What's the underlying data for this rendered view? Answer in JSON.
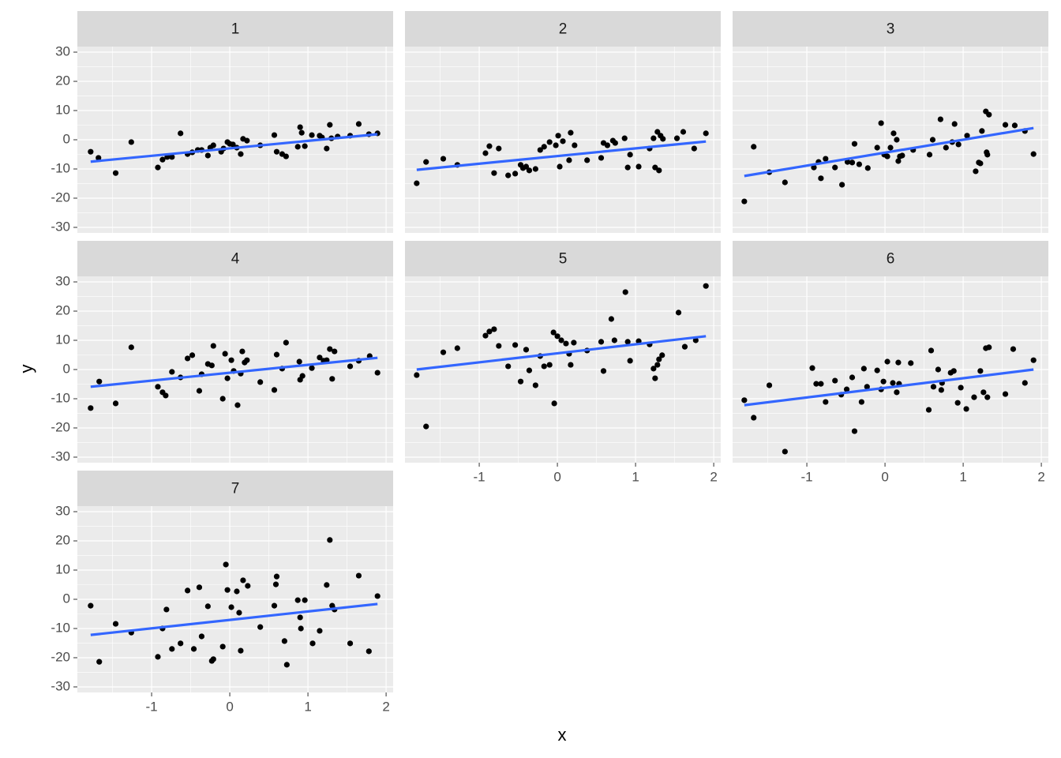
{
  "xlabel": "x",
  "ylabel": "y",
  "chart_data": [
    {
      "type": "scatter",
      "title": "1",
      "color": "#000000",
      "xlim": [
        -1.95,
        2.09
      ],
      "ylim": [
        -31.9,
        31.9
      ],
      "xticks": [
        -1,
        0,
        1,
        2
      ],
      "yticks": [
        -30,
        -20,
        -10,
        0,
        10,
        20,
        30
      ],
      "x": [
        -1.78,
        -1.68,
        -1.46,
        -1.26,
        -0.92,
        -0.86,
        -0.8,
        -0.74,
        -0.63,
        -0.54,
        -0.48,
        -0.41,
        -0.36,
        -0.28,
        -0.25,
        -0.21,
        -0.11,
        -0.08,
        -0.03,
        0,
        0.04,
        0.09,
        0.14,
        0.17,
        0.22,
        0.39,
        0.57,
        0.6,
        0.67,
        0.72,
        0.87,
        0.9,
        0.92,
        0.96,
        1.05,
        1.15,
        1.18,
        1.24,
        1.28,
        1.3,
        1.38,
        1.54,
        1.65,
        1.78,
        1.89
      ],
      "y": [
        -4.1,
        -6.2,
        -11.4,
        -0.8,
        -9.5,
        -6.8,
        -5.9,
        -5.9,
        2.2,
        -4.9,
        -4.3,
        -3.5,
        -3.5,
        -5.4,
        -2.7,
        -1.9,
        -4.1,
        -3,
        -0.8,
        -1.4,
        -1.6,
        -2.7,
        -4.9,
        0.3,
        -0.3,
        -1.9,
        1.6,
        -4.1,
        -4.9,
        -5.7,
        -2.4,
        4.3,
        2.4,
        -2.2,
        1.6,
        1.4,
        0.8,
        -3,
        5.1,
        0.5,
        1.1,
        1.4,
        5.4,
        1.9,
        2.2
      ],
      "fit": {
        "color": "#3366ff",
        "x": [
          -1.78,
          1.89
        ],
        "y": [
          -7.5,
          1.9
        ]
      }
    },
    {
      "type": "scatter",
      "title": "2",
      "color": "#000000",
      "xlim": [
        -1.95,
        2.09
      ],
      "ylim": [
        -31.9,
        31.9
      ],
      "xticks": [
        -1,
        0,
        1,
        2
      ],
      "yticks": [
        -30,
        -20,
        -10,
        0,
        10,
        20,
        30
      ],
      "x": [
        -1.8,
        -1.68,
        -1.46,
        -1.28,
        -0.92,
        -0.87,
        -0.81,
        -0.75,
        -0.63,
        -0.54,
        -0.47,
        -0.44,
        -0.4,
        -0.36,
        -0.28,
        -0.22,
        -0.17,
        -0.1,
        -0.02,
        0.01,
        0.03,
        0.07,
        0.15,
        0.17,
        0.22,
        0.38,
        0.56,
        0.59,
        0.64,
        0.71,
        0.74,
        0.86,
        0.9,
        0.93,
        1.04,
        1.18,
        1.23,
        1.25,
        1.28,
        1.3,
        1.32,
        1.35,
        1.53,
        1.61,
        1.75,
        1.9
      ],
      "y": [
        -14.9,
        -7.6,
        -6.5,
        -8.6,
        -4.6,
        -2.2,
        -11.4,
        -3,
        -12.2,
        -11.6,
        -8.6,
        -9.7,
        -9.2,
        -10.5,
        -10,
        -3.5,
        -2.4,
        -0.8,
        -1.9,
        1.4,
        -9.2,
        -0.5,
        -7,
        2.4,
        -1.9,
        -7,
        -6.2,
        -1.1,
        -1.9,
        -0.3,
        -1.1,
        0.5,
        -9.5,
        -5.1,
        -9.2,
        -3,
        0.5,
        -9.5,
        2.7,
        -10.5,
        1.4,
        0.3,
        0.5,
        2.7,
        -3,
        2.2
      ],
      "fit": {
        "color": "#3366ff",
        "x": [
          -1.8,
          1.9
        ],
        "y": [
          -10.3,
          -0.6
        ]
      }
    },
    {
      "type": "scatter",
      "title": "3",
      "color": "#000000",
      "xlim": [
        -1.95,
        2.09
      ],
      "ylim": [
        -31.9,
        31.9
      ],
      "xticks": [
        -1,
        0,
        1,
        2
      ],
      "yticks": [
        -30,
        -20,
        -10,
        0,
        10,
        20,
        30
      ],
      "x": [
        -1.8,
        -1.68,
        -1.48,
        -1.28,
        -0.91,
        -0.85,
        -0.82,
        -0.76,
        -0.64,
        -0.55,
        -0.48,
        -0.42,
        -0.39,
        -0.33,
        -0.22,
        -0.1,
        -0.05,
        -0.01,
        0.03,
        0.07,
        0.11,
        0.15,
        0.17,
        0.19,
        0.22,
        0.36,
        0.57,
        0.61,
        0.71,
        0.78,
        0.86,
        0.89,
        0.94,
        1.05,
        1.16,
        1.2,
        1.22,
        1.24,
        1.29,
        1.3,
        1.31,
        1.33,
        1.54,
        1.66,
        1.79,
        1.9
      ],
      "y": [
        -21.1,
        -2.4,
        -11.1,
        -14.6,
        -9.5,
        -7.6,
        -13.2,
        -6.5,
        -9.5,
        -15.4,
        -7.6,
        -7.8,
        -1.4,
        -8.4,
        -9.7,
        -2.7,
        5.7,
        -5.1,
        -5.7,
        -2.7,
        2.2,
        0,
        -7.3,
        -5.7,
        -5.4,
        -3.5,
        -5.1,
        0,
        7,
        -2.7,
        -0.8,
        5.4,
        -1.6,
        1.4,
        -10.8,
        -7.8,
        -8.1,
        3,
        9.7,
        -4.3,
        -5.1,
        8.6,
        5.1,
        4.9,
        3,
        -4.9
      ],
      "fit": {
        "color": "#3366ff",
        "x": [
          -1.8,
          1.9
        ],
        "y": [
          -12.4,
          4
        ]
      }
    },
    {
      "type": "scatter",
      "title": "4",
      "color": "#000000",
      "xlim": [
        -1.95,
        2.09
      ],
      "ylim": [
        -31.9,
        31.9
      ],
      "xticks": [
        -1,
        0,
        1,
        2
      ],
      "yticks": [
        -30,
        -20,
        -10,
        0,
        10,
        20,
        30
      ],
      "x": [
        -1.78,
        -1.67,
        -1.46,
        -1.26,
        -0.92,
        -0.86,
        -0.82,
        -0.74,
        -0.63,
        -0.54,
        -0.48,
        -0.39,
        -0.36,
        -0.28,
        -0.23,
        -0.21,
        -0.09,
        -0.06,
        -0.03,
        0.02,
        0.05,
        0.1,
        0.14,
        0.16,
        0.19,
        0.22,
        0.39,
        0.57,
        0.6,
        0.67,
        0.72,
        0.89,
        0.9,
        0.93,
        1.05,
        1.15,
        1.2,
        1.24,
        1.28,
        1.31,
        1.34,
        1.54,
        1.65,
        1.79,
        1.89
      ],
      "y": [
        -13.2,
        -4.1,
        -11.6,
        7.6,
        -5.9,
        -7.8,
        -8.9,
        -0.8,
        -2.7,
        3.8,
        4.9,
        -7.3,
        -1.6,
        1.9,
        1.4,
        8.1,
        -10,
        5.4,
        -3,
        3.2,
        -0.5,
        -12.2,
        -1.4,
        6.2,
        2.4,
        3.2,
        -4.3,
        -7,
        5.1,
        0.3,
        9.2,
        2.7,
        -3.5,
        -2.2,
        0.5,
        4.1,
        3,
        3.2,
        7,
        -3.2,
        6.2,
        1.1,
        3,
        4.6,
        -1.1
      ],
      "fit": {
        "color": "#3366ff",
        "x": [
          -1.78,
          1.89
        ],
        "y": [
          -5.9,
          4
        ]
      }
    },
    {
      "type": "scatter",
      "title": "5",
      "color": "#000000",
      "xlim": [
        -1.95,
        2.09
      ],
      "ylim": [
        -31.9,
        31.9
      ],
      "xticks": [
        -1,
        0,
        1,
        2
      ],
      "yticks": [
        -30,
        -20,
        -10,
        0,
        10,
        20,
        30
      ],
      "x": [
        -1.8,
        -1.68,
        -1.46,
        -1.28,
        -0.92,
        -0.87,
        -0.81,
        -0.75,
        -0.63,
        -0.54,
        -0.47,
        -0.4,
        -0.36,
        -0.28,
        -0.22,
        -0.17,
        -0.1,
        -0.05,
        -0.04,
        0,
        0.05,
        0.11,
        0.15,
        0.17,
        0.21,
        0.38,
        0.56,
        0.59,
        0.69,
        0.73,
        0.87,
        0.9,
        0.93,
        1.04,
        1.18,
        1.23,
        1.25,
        1.28,
        1.3,
        1.34,
        1.55,
        1.63,
        1.77,
        1.9
      ],
      "y": [
        -1.9,
        -19.5,
        5.9,
        7.3,
        11.6,
        13,
        13.8,
        8.1,
        1.1,
        8.4,
        -4.1,
        6.8,
        -0.3,
        -5.4,
        4.6,
        1.1,
        1.6,
        12.7,
        -11.6,
        11.4,
        10,
        8.9,
        5.4,
        1.6,
        9.2,
        6.5,
        9.5,
        -0.5,
        17.3,
        10,
        26.5,
        9.5,
        3,
        9.7,
        8.6,
        0.3,
        -3,
        1.6,
        3.5,
        4.9,
        19.5,
        7.8,
        10,
        28.6
      ],
      "fit": {
        "color": "#3366ff",
        "x": [
          -1.8,
          1.9
        ],
        "y": [
          0,
          11.4
        ]
      }
    },
    {
      "type": "scatter",
      "title": "6",
      "color": "#000000",
      "xlim": [
        -1.95,
        2.09
      ],
      "ylim": [
        -31.9,
        31.9
      ],
      "xticks": [
        -1,
        0,
        1,
        2
      ],
      "yticks": [
        -30,
        -20,
        -10,
        0,
        10,
        20,
        30
      ],
      "x": [
        -1.8,
        -1.68,
        -1.48,
        -1.28,
        -0.93,
        -0.88,
        -0.82,
        -0.76,
        -0.64,
        -0.56,
        -0.49,
        -0.42,
        -0.39,
        -0.3,
        -0.27,
        -0.23,
        -0.1,
        -0.05,
        -0.02,
        0.03,
        0.1,
        0.15,
        0.17,
        0.18,
        0.33,
        0.56,
        0.59,
        0.62,
        0.68,
        0.72,
        0.73,
        0.84,
        0.88,
        0.93,
        0.97,
        1.04,
        1.14,
        1.22,
        1.26,
        1.29,
        1.31,
        1.33,
        1.54,
        1.64,
        1.79,
        1.9
      ],
      "y": [
        -10.5,
        -16.5,
        -5.4,
        -28.1,
        0.5,
        -4.9,
        -4.9,
        -11.1,
        -3.8,
        -8.6,
        -6.8,
        -2.7,
        -21.1,
        -11.1,
        0.3,
        -5.9,
        -0.3,
        -6.8,
        -4.1,
        2.7,
        -4.6,
        -7.8,
        2.4,
        -4.9,
        2.2,
        -13.8,
        6.5,
        -5.9,
        0,
        -7,
        -4.6,
        -1.1,
        -0.5,
        -11.4,
        -6.2,
        -13.5,
        -9.5,
        -0.5,
        -7.8,
        7.3,
        -9.5,
        7.6,
        -8.4,
        7,
        -4.6,
        3.2
      ],
      "fit": {
        "color": "#3366ff",
        "x": [
          -1.8,
          1.9
        ],
        "y": [
          -12.2,
          0
        ]
      }
    },
    {
      "type": "scatter",
      "title": "7",
      "color": "#000000",
      "xlim": [
        -1.95,
        2.09
      ],
      "ylim": [
        -31.9,
        31.9
      ],
      "xticks": [
        -1,
        0,
        1,
        2
      ],
      "yticks": [
        -30,
        -20,
        -10,
        0,
        10,
        20,
        30
      ],
      "x": [
        -1.78,
        -1.67,
        -1.46,
        -1.26,
        -0.92,
        -0.86,
        -0.81,
        -0.74,
        -0.63,
        -0.54,
        -0.46,
        -0.39,
        -0.36,
        -0.28,
        -0.23,
        -0.21,
        -0.09,
        -0.05,
        -0.03,
        0.02,
        0.09,
        0.12,
        0.14,
        0.17,
        0.23,
        0.39,
        0.57,
        0.6,
        0.59,
        0.7,
        0.73,
        0.87,
        0.9,
        0.91,
        0.96,
        1.06,
        1.15,
        1.24,
        1.28,
        1.31,
        1.34,
        1.54,
        1.65,
        1.78,
        1.89
      ],
      "y": [
        -2.2,
        -21.4,
        -8.4,
        -11.4,
        -19.7,
        -10,
        -3.5,
        -17,
        -15.1,
        3,
        -17,
        4.1,
        -12.7,
        -2.4,
        -21.1,
        -20.5,
        -16.2,
        11.9,
        3.2,
        -2.7,
        2.7,
        -4.6,
        -17.6,
        6.5,
        4.6,
        -9.5,
        -2.2,
        7.8,
        5.1,
        -14.3,
        -22.4,
        -0.3,
        -6.2,
        -10,
        -0.3,
        -15.1,
        -10.8,
        4.9,
        20.3,
        -2.2,
        -3.5,
        -15.1,
        8.1,
        -17.8,
        1.1
      ],
      "fit": {
        "color": "#3366ff",
        "x": [
          -1.78,
          1.89
        ],
        "y": [
          -12.2,
          -1.6
        ]
      }
    }
  ]
}
